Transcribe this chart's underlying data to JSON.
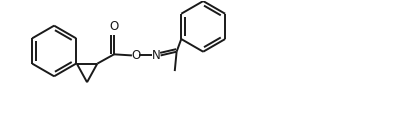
{
  "line_color": "#1a1a1a",
  "background_color": "#ffffff",
  "line_width": 1.4,
  "fig_width": 3.95,
  "fig_height": 1.28,
  "dpi": 100,
  "xlim": [
    0,
    10.5
  ],
  "ylim": [
    0,
    3.4
  ]
}
